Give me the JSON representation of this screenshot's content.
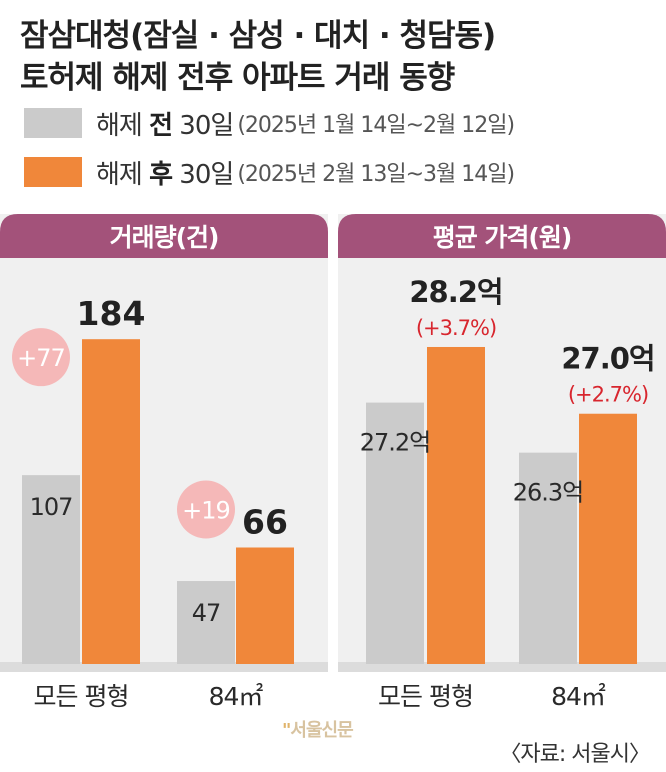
{
  "title_line1": "잠삼대청(잠실 · 삼성 · 대치 · 청담동)",
  "title_line2": "토허제 해제 전후 아파트 거래 동향",
  "legend": [
    {
      "prefix": "해제 ",
      "strong": "전",
      "suffix": " 30일",
      "range": "(2025년 1월 14일~2월 12일)",
      "color": "#cbcbcb"
    },
    {
      "prefix": "해제 ",
      "strong": "후",
      "suffix": " 30일",
      "range": "(2025년 2월 13일~3월 14일)",
      "color": "#f0873a"
    }
  ],
  "colors": {
    "header": "#a3527a",
    "panel": "#f0f0f0",
    "before": "#cbcbcb",
    "after": "#f0873a",
    "bubble": "#f5b8b8",
    "change_text": "#d8262e"
  },
  "source": "〈자료: 서울시〉",
  "watermark": "서울신문",
  "chart_data": [
    {
      "type": "bar",
      "title": "거래량(건)",
      "categories": [
        "모든 평형",
        "84㎡"
      ],
      "series": [
        {
          "name": "해제 전 30일",
          "values": [
            107,
            47
          ]
        },
        {
          "name": "해제 후 30일",
          "values": [
            184,
            66
          ]
        }
      ],
      "value_labels_before": [
        "107",
        "47"
      ],
      "value_labels_after": [
        "184",
        "66"
      ],
      "change_labels": [
        "+77",
        "+19"
      ],
      "ylim": [
        0,
        230
      ]
    },
    {
      "type": "bar",
      "title": "평균 가격(원)",
      "categories": [
        "모든 평형",
        "84㎡"
      ],
      "series": [
        {
          "name": "해제 전 30일",
          "values": [
            27.2,
            26.3
          ]
        },
        {
          "name": "해제 후 30일",
          "values": [
            28.2,
            27.0
          ]
        }
      ],
      "value_labels_before": [
        "27.2억",
        "26.3억"
      ],
      "value_labels_after": [
        "28.2억",
        "27.0억"
      ],
      "change_labels": [
        "(+3.7%)",
        "(+2.7%)"
      ],
      "ylim": [
        22.5,
        29.8
      ]
    }
  ]
}
